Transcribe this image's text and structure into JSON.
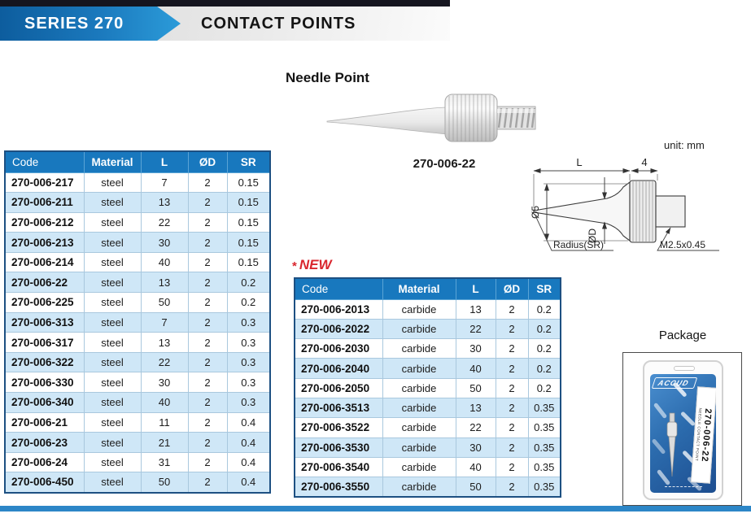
{
  "header": {
    "series_label": "SERIES 270",
    "page_title": "CONTACT POINTS"
  },
  "section": {
    "product_name": "Needle Point",
    "product_code": "270-006-22"
  },
  "drawing": {
    "unit_label": "unit: mm",
    "dim_length": "L",
    "dim_knurl": "4",
    "dim_diameter5": "Ø5",
    "dim_diameterD": "ØD",
    "radius_label": "Radius(SR)",
    "thread_label": "M2.5x0.45"
  },
  "new_badge": {
    "star": "*",
    "label": "NEW"
  },
  "tables": {
    "columns": [
      "Code",
      "Material",
      "L",
      "ØD",
      "SR"
    ],
    "steel": {
      "rows": [
        {
          "code": "270-006-217",
          "material": "steel",
          "l": "7",
          "od": "2",
          "sr": "0.15"
        },
        {
          "code": "270-006-211",
          "material": "steel",
          "l": "13",
          "od": "2",
          "sr": "0.15"
        },
        {
          "code": "270-006-212",
          "material": "steel",
          "l": "22",
          "od": "2",
          "sr": "0.15"
        },
        {
          "code": "270-006-213",
          "material": "steel",
          "l": "30",
          "od": "2",
          "sr": "0.15"
        },
        {
          "code": "270-006-214",
          "material": "steel",
          "l": "40",
          "od": "2",
          "sr": "0.15"
        },
        {
          "code": "270-006-22",
          "material": "steel",
          "l": "13",
          "od": "2",
          "sr": "0.2"
        },
        {
          "code": "270-006-225",
          "material": "steel",
          "l": "50",
          "od": "2",
          "sr": "0.2"
        },
        {
          "code": "270-006-313",
          "material": "steel",
          "l": "7",
          "od": "2",
          "sr": "0.3"
        },
        {
          "code": "270-006-317",
          "material": "steel",
          "l": "13",
          "od": "2",
          "sr": "0.3"
        },
        {
          "code": "270-006-322",
          "material": "steel",
          "l": "22",
          "od": "2",
          "sr": "0.3"
        },
        {
          "code": "270-006-330",
          "material": "steel",
          "l": "30",
          "od": "2",
          "sr": "0.3"
        },
        {
          "code": "270-006-340",
          "material": "steel",
          "l": "40",
          "od": "2",
          "sr": "0.3"
        },
        {
          "code": "270-006-21",
          "material": "steel",
          "l": "11",
          "od": "2",
          "sr": "0.4"
        },
        {
          "code": "270-006-23",
          "material": "steel",
          "l": "21",
          "od": "2",
          "sr": "0.4"
        },
        {
          "code": "270-006-24",
          "material": "steel",
          "l": "31",
          "od": "2",
          "sr": "0.4"
        },
        {
          "code": "270-006-450",
          "material": "steel",
          "l": "50",
          "od": "2",
          "sr": "0.4"
        }
      ]
    },
    "carbide": {
      "rows": [
        {
          "code": "270-006-2013",
          "material": "carbide",
          "l": "13",
          "od": "2",
          "sr": "0.2"
        },
        {
          "code": "270-006-2022",
          "material": "carbide",
          "l": "22",
          "od": "2",
          "sr": "0.2"
        },
        {
          "code": "270-006-2030",
          "material": "carbide",
          "l": "30",
          "od": "2",
          "sr": "0.2"
        },
        {
          "code": "270-006-2040",
          "material": "carbide",
          "l": "40",
          "od": "2",
          "sr": "0.2"
        },
        {
          "code": "270-006-2050",
          "material": "carbide",
          "l": "50",
          "od": "2",
          "sr": "0.2"
        },
        {
          "code": "270-006-3513",
          "material": "carbide",
          "l": "13",
          "od": "2",
          "sr": "0.35"
        },
        {
          "code": "270-006-3522",
          "material": "carbide",
          "l": "22",
          "od": "2",
          "sr": "0.35"
        },
        {
          "code": "270-006-3530",
          "material": "carbide",
          "l": "30",
          "od": "2",
          "sr": "0.35"
        },
        {
          "code": "270-006-3540",
          "material": "carbide",
          "l": "40",
          "od": "2",
          "sr": "0.35"
        },
        {
          "code": "270-006-3550",
          "material": "carbide",
          "l": "50",
          "od": "2",
          "sr": "0.35"
        }
      ]
    }
  },
  "package": {
    "label": "Package",
    "brand": "ACCUD",
    "pack_code": "270-006-22",
    "pack_type": "NEEDLE CONTACT POINT"
  },
  "colors": {
    "accent_blue": "#1878be",
    "row_alt_blue": "#cfe7f7",
    "table_border_navy": "#1d5082",
    "new_red": "#d9262e",
    "bottom_bar_blue": "#2c86c7"
  }
}
